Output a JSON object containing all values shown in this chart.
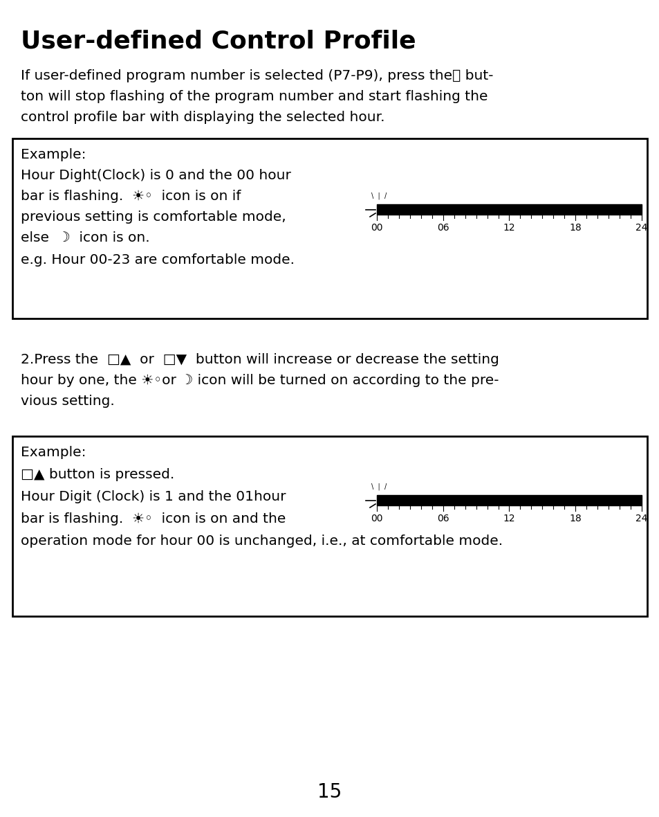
{
  "title": "User-defined Control Profile",
  "intro_lines": [
    "If user-defined program number is selected (P7-P9), press theⓅ but-",
    "ton will stop flashing of the program number and start flashing the",
    "control profile bar with displaying the selected hour."
  ],
  "box1_text_lines": [
    "Example:",
    "Hour Dight(Clock) is 0 and the 00 hour",
    "bar is flashing.  ☀◦  icon is on if",
    "previous setting is comfortable mode,",
    "else  ☽  icon is on.",
    "e.g. Hour 00-23 are comfortable mode."
  ],
  "middle_lines": [
    "2.Press the  □▲  or  □▼  button will increase or decrease the setting",
    "hour by one, the ☀◦or ☽ icon will be turned on according to the pre-",
    "vious setting."
  ],
  "box2_text_lines": [
    "Example:",
    "□▲ button is pressed.",
    "Hour Digit (Clock) is 1 and the 01hour",
    "bar is flashing.  ☀◦  icon is on and the",
    "operation mode for hour 00 is unchanged, i.e., at comfortable mode."
  ],
  "page_number": "15",
  "bar_ticks": [
    "00",
    "06",
    "12",
    "18",
    "24"
  ],
  "bar_tick_positions": [
    0,
    6,
    12,
    18,
    24
  ],
  "background_color": "#ffffff",
  "text_color": "#000000",
  "bar_color": "#000000",
  "title_fontsize": 26,
  "body_fontsize": 14.5,
  "page_fontsize": 20
}
